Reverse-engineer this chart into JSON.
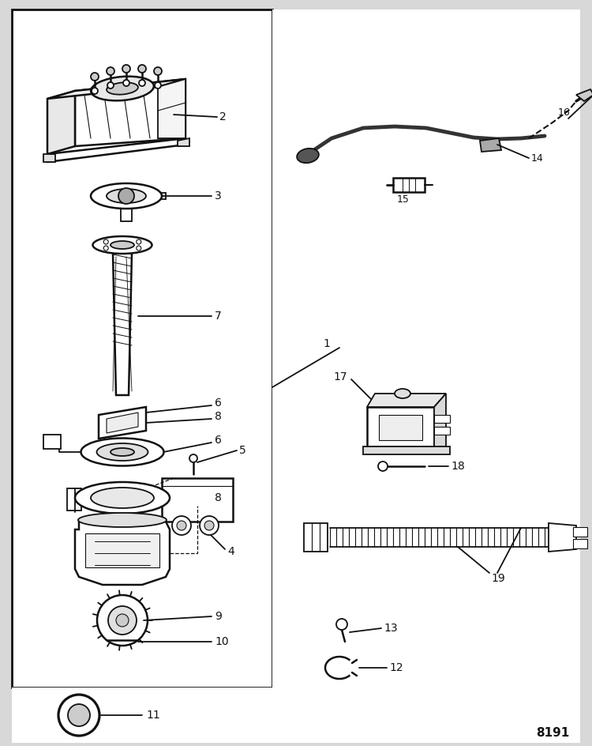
{
  "bg": "#d8d8d8",
  "white": "#ffffff",
  "lc": "#111111",
  "number": "8191",
  "figsize": [
    7.5,
    9.44
  ],
  "dpi": 100
}
